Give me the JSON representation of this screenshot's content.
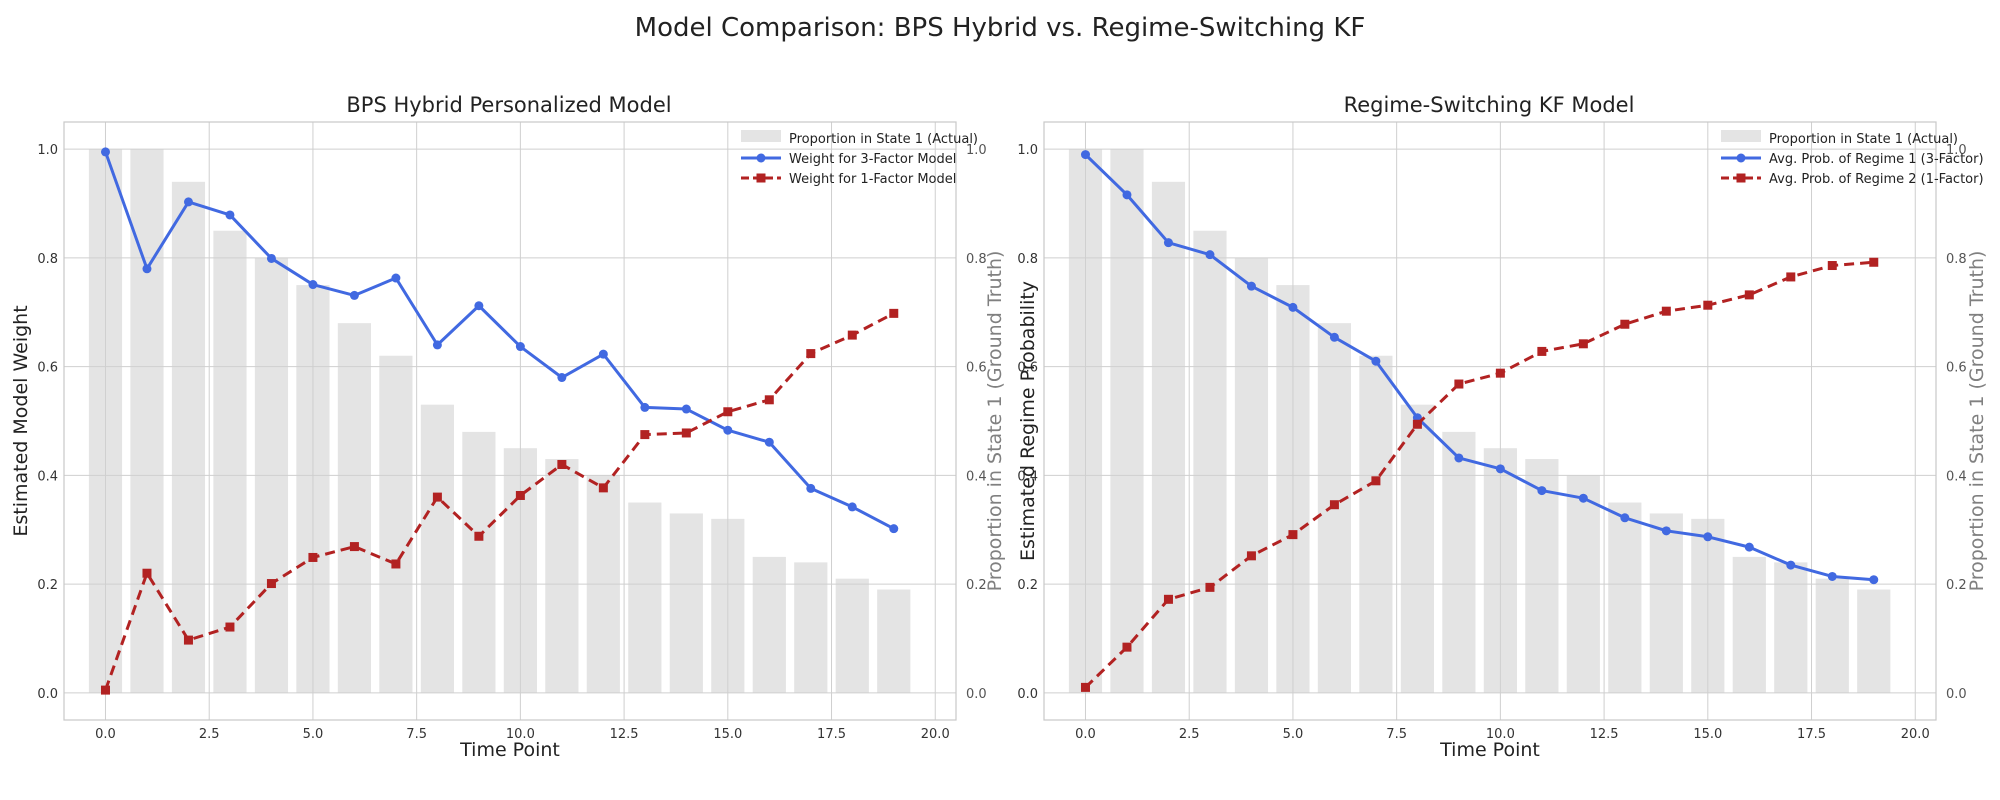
{
  "figure": {
    "title": "Model Comparison: BPS Hybrid vs. Regime-Switching KF"
  },
  "colors": {
    "blue": "#4169e1",
    "red": "#b22222",
    "bar": "#e4e4e4"
  },
  "chart_data": [
    {
      "type": "line",
      "title": "BPS Hybrid Personalized Model",
      "xlabel": "Time Point",
      "ylabel": "Estimated Model Weight",
      "ylabel_right": "Proportion in State 1 (Ground Truth)",
      "xlim": [
        -1.0,
        20.5
      ],
      "ylim": [
        -0.05,
        1.05
      ],
      "ylim_right": [
        -0.05,
        1.05
      ],
      "xticks": [
        0.0,
        2.5,
        5.0,
        7.5,
        10.0,
        12.5,
        15.0,
        17.5,
        20.0
      ],
      "xtick_labels": [
        "0.0",
        "2.5",
        "5.0",
        "7.5",
        "10.0",
        "12.5",
        "15.0",
        "17.5",
        "20.0"
      ],
      "yticks": [
        0.0,
        0.2,
        0.4,
        0.6,
        0.8,
        1.0
      ],
      "ytick_labels": [
        "0.0",
        "0.2",
        "0.4",
        "0.6",
        "0.8",
        "1.0"
      ],
      "grid": true,
      "legend_position": "top-right",
      "x": [
        0,
        1,
        2,
        3,
        4,
        5,
        6,
        7,
        8,
        9,
        10,
        11,
        12,
        13,
        14,
        15,
        16,
        17,
        18,
        19
      ],
      "bars": {
        "name": "Proportion in State 1 (Actual)",
        "values": [
          1.0,
          1.0,
          0.94,
          0.85,
          0.8,
          0.75,
          0.68,
          0.62,
          0.53,
          0.48,
          0.45,
          0.43,
          0.4,
          0.35,
          0.33,
          0.32,
          0.25,
          0.24,
          0.21,
          0.19
        ]
      },
      "series": [
        {
          "name": "Weight for 3-Factor Model",
          "color": "#4169e1",
          "style": "solid",
          "marker": "circle",
          "values": [
            0.995,
            0.78,
            0.903,
            0.879,
            0.799,
            0.751,
            0.731,
            0.763,
            0.64,
            0.712,
            0.637,
            0.58,
            0.623,
            0.525,
            0.522,
            0.483,
            0.461,
            0.376,
            0.342,
            0.302
          ]
        },
        {
          "name": "Weight for 1-Factor Model",
          "color": "#b22222",
          "style": "dashed",
          "marker": "square",
          "values": [
            0.005,
            0.22,
            0.097,
            0.121,
            0.201,
            0.249,
            0.269,
            0.237,
            0.36,
            0.288,
            0.363,
            0.42,
            0.377,
            0.475,
            0.478,
            0.517,
            0.539,
            0.624,
            0.658,
            0.698
          ]
        }
      ]
    },
    {
      "type": "line",
      "title": "Regime-Switching KF Model",
      "xlabel": "Time Point",
      "ylabel": "Estimated Regime Probability",
      "ylabel_right": "Proportion in State 1 (Ground Truth)",
      "xlim": [
        -1.0,
        20.5
      ],
      "ylim": [
        -0.05,
        1.05
      ],
      "ylim_right": [
        -0.05,
        1.05
      ],
      "xticks": [
        0.0,
        2.5,
        5.0,
        7.5,
        10.0,
        12.5,
        15.0,
        17.5,
        20.0
      ],
      "xtick_labels": [
        "0.0",
        "2.5",
        "5.0",
        "7.5",
        "10.0",
        "12.5",
        "15.0",
        "17.5",
        "20.0"
      ],
      "yticks": [
        0.0,
        0.2,
        0.4,
        0.6,
        0.8,
        1.0
      ],
      "ytick_labels": [
        "0.0",
        "0.2",
        "0.4",
        "0.6",
        "0.8",
        "1.0"
      ],
      "grid": true,
      "legend_position": "top-right",
      "x": [
        0,
        1,
        2,
        3,
        4,
        5,
        6,
        7,
        8,
        9,
        10,
        11,
        12,
        13,
        14,
        15,
        16,
        17,
        18,
        19
      ],
      "bars": {
        "name": "Proportion in State 1 (Actual)",
        "values": [
          1.0,
          1.0,
          0.94,
          0.85,
          0.8,
          0.75,
          0.68,
          0.62,
          0.53,
          0.48,
          0.45,
          0.43,
          0.4,
          0.35,
          0.33,
          0.32,
          0.25,
          0.24,
          0.21,
          0.19
        ]
      },
      "series": [
        {
          "name": "Avg. Prob. of Regime 1 (3-Factor)",
          "color": "#4169e1",
          "style": "solid",
          "marker": "circle",
          "values": [
            0.99,
            0.916,
            0.828,
            0.806,
            0.748,
            0.709,
            0.654,
            0.61,
            0.506,
            0.432,
            0.412,
            0.372,
            0.358,
            0.322,
            0.298,
            0.287,
            0.268,
            0.235,
            0.214,
            0.208
          ]
        },
        {
          "name": "Avg. Prob. of Regime 2 (1-Factor)",
          "color": "#b22222",
          "style": "dashed",
          "marker": "square",
          "values": [
            0.01,
            0.084,
            0.172,
            0.194,
            0.252,
            0.291,
            0.346,
            0.39,
            0.494,
            0.568,
            0.588,
            0.628,
            0.642,
            0.678,
            0.702,
            0.713,
            0.732,
            0.765,
            0.786,
            0.792
          ]
        }
      ]
    }
  ]
}
